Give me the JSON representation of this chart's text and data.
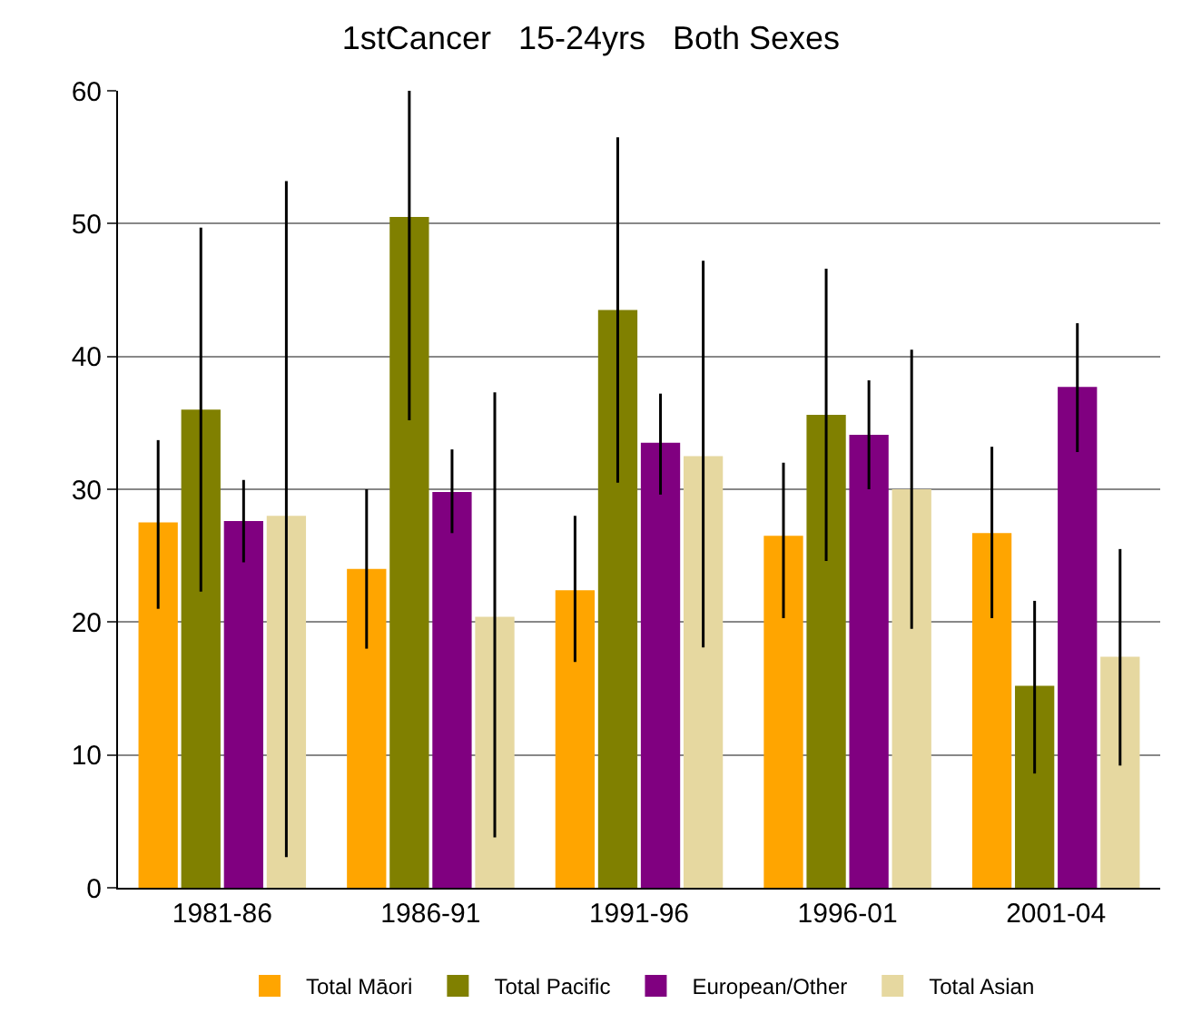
{
  "chart_data": {
    "type": "bar",
    "title": "1stCancer   15-24yrs   Both Sexes",
    "categories": [
      "1981-86",
      "1986-91",
      "1991-96",
      "1996-01",
      "2001-04"
    ],
    "series": [
      {
        "name": "Total Māori",
        "color": "#ffa500",
        "values": [
          27.5,
          24,
          22.4,
          26.5,
          26.7
        ],
        "errors": [
          [
            21,
            33.7
          ],
          [
            18,
            30
          ],
          [
            17,
            28
          ],
          [
            20.3,
            32
          ],
          [
            20.3,
            33.2
          ]
        ]
      },
      {
        "name": "Total Pacific",
        "color": "#808000",
        "values": [
          36,
          50.5,
          43.5,
          35.6,
          15.2
        ],
        "errors": [
          [
            22.3,
            49.7
          ],
          [
            35.2,
            60
          ],
          [
            30.5,
            56.5
          ],
          [
            24.6,
            46.6
          ],
          [
            8.6,
            21.6
          ]
        ]
      },
      {
        "name": "European/Other",
        "color": "#800080",
        "values": [
          27.6,
          29.8,
          33.5,
          34.1,
          37.7
        ],
        "errors": [
          [
            24.5,
            30.7
          ],
          [
            26.7,
            33
          ],
          [
            29.6,
            37.2
          ],
          [
            30,
            38.2
          ],
          [
            32.8,
            42.5
          ]
        ]
      },
      {
        "name": "Total Asian",
        "color": "#e6d8a0",
        "values": [
          28,
          20.4,
          32.5,
          30,
          17.4
        ],
        "errors": [
          [
            2.3,
            53.2
          ],
          [
            3.8,
            37.3
          ],
          [
            18.1,
            47.2
          ],
          [
            19.5,
            40.5
          ],
          [
            9.2,
            25.5
          ]
        ]
      }
    ],
    "ylim": [
      0,
      60
    ],
    "yticks": [
      0,
      10,
      20,
      30,
      40,
      50,
      60
    ],
    "grid": "y",
    "legend": "bottom"
  }
}
